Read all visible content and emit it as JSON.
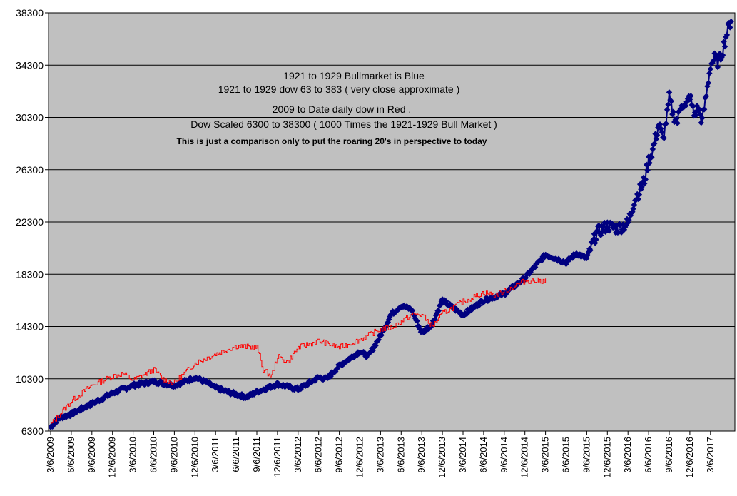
{
  "chart_data": {
    "type": "line",
    "title": "",
    "xlabel": "",
    "ylabel": "",
    "ylim": [
      6300,
      38300
    ],
    "grid": "horizontal",
    "background": "#c0c0c0",
    "y_ticks": [
      "6300",
      "10300",
      "14300",
      "18300",
      "22300",
      "26300",
      "30300",
      "34300",
      "38300"
    ],
    "x_ticks": [
      "3/6/2009",
      "6/6/2009",
      "9/6/2009",
      "12/6/2009",
      "3/6/2010",
      "6/6/2010",
      "9/6/2010",
      "12/6/2010",
      "3/6/2011",
      "6/6/2011",
      "9/6/2011",
      "12/6/2011",
      "3/6/2012",
      "6/6/2012",
      "9/6/2012",
      "12/6/2012",
      "3/6/2013",
      "6/6/2013",
      "9/6/2013",
      "12/6/2013",
      "3/6/2014",
      "6/6/2014",
      "9/6/2014",
      "12/6/2014",
      "3/6/2015",
      "6/6/2015",
      "9/6/2015",
      "12/6/2015",
      "3/6/2016",
      "6/6/2016",
      "9/6/2016",
      "12/6/2016",
      "3/6/2017"
    ],
    "annotations": [
      "1921 to 1929 Bullmarket is Blue",
      "1921 to 1929 dow 63 to 383 ( very close approximate )",
      "2009 to Date daily dow in Red .",
      "Dow Scaled 6300 to 38300 ( 1000 Times the 1921-1929 Bull Market )",
      "This is just a comparison only to put the roaring 20's in perspective to today"
    ],
    "series": [
      {
        "color": "#000080",
        "marker": "diamond",
        "x": [
          0,
          0.4,
          1,
          2,
          3,
          4,
          5,
          6,
          7,
          7.6,
          8,
          9,
          9.5,
          10,
          11,
          12,
          13,
          13.4,
          14,
          15,
          15.4,
          16,
          16.5,
          17,
          17.5,
          18,
          18.5,
          19,
          20,
          21,
          22,
          23,
          24,
          25,
          25.5,
          26,
          26.5,
          27,
          27.5,
          28,
          28.3,
          28.5,
          28.8,
          29,
          29.2,
          29.5,
          29.7,
          29.9,
          30,
          30.2,
          30.4,
          30.6,
          30.8,
          31,
          31.2,
          31.4,
          31.6,
          31.8,
          32,
          32.2,
          32.4,
          32.6,
          32.8,
          33
        ],
        "y": [
          6600,
          7300,
          7600,
          8400,
          9200,
          9800,
          10100,
          9800,
          10400,
          10000,
          9600,
          9100,
          8900,
          9300,
          9900,
          9500,
          10400,
          10300,
          11300,
          12400,
          12000,
          13600,
          15200,
          15900,
          15600,
          13800,
          14500,
          16300,
          15200,
          16300,
          16800,
          18000,
          19800,
          19200,
          19900,
          19500,
          21500,
          22000,
          21800,
          22200,
          23900,
          24500,
          25500,
          27000,
          27800,
          29800,
          28600,
          30500,
          31800,
          30500,
          30000,
          31500,
          31000,
          32000,
          30500,
          31000,
          30000,
          32000,
          34300,
          34800,
          34500,
          35500,
          36800,
          37800
        ]
      },
      {
        "color": "#ff0000",
        "marker": "none",
        "x": [
          0,
          1,
          2,
          3,
          3.5,
          4,
          5,
          5.5,
          6,
          7,
          8,
          9,
          10,
          10.3,
          10.7,
          11,
          11.5,
          12,
          13,
          14,
          15,
          16,
          16.5,
          17,
          17.5,
          18,
          18.5,
          19,
          20,
          21,
          21.5,
          22,
          23,
          24
        ],
        "y": [
          6800,
          8600,
          9800,
          10500,
          10700,
          10200,
          11000,
          10200,
          10000,
          11500,
          12200,
          12800,
          12700,
          11000,
          10500,
          12000,
          11600,
          12700,
          13200,
          12700,
          13300,
          14100,
          14200,
          14700,
          15200,
          15200,
          14300,
          15300,
          16200,
          16900,
          16700,
          17000,
          17800,
          17800
        ]
      }
    ]
  }
}
